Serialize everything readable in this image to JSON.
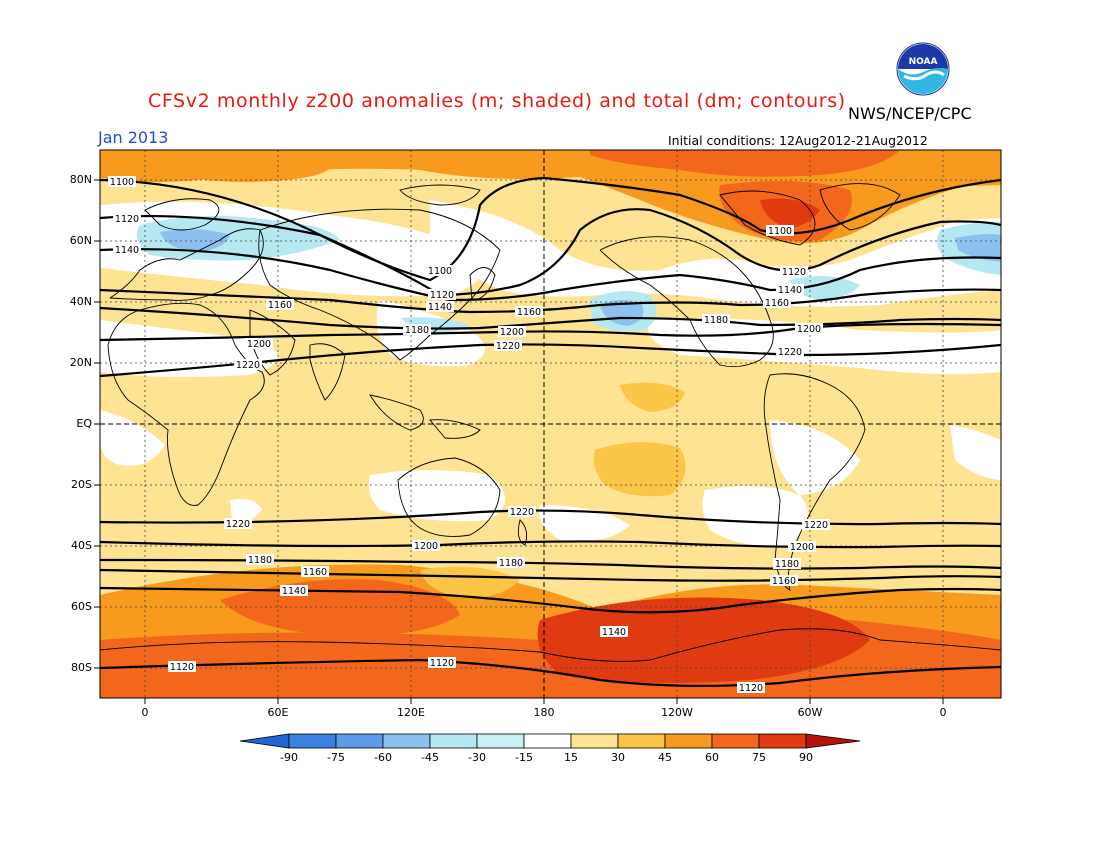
{
  "header": {
    "title": "CFSv2 monthly z200 anomalies (m; shaded) and total (dm; contours)",
    "agency": "NWS/NCEP/CPC",
    "date": "Jan 2013",
    "initial_conditions": "Initial conditions: 12Aug2012-21Aug2012",
    "logo_text": "NOAA"
  },
  "axes": {
    "lat_labels": [
      "80N",
      "60N",
      "40N",
      "20N",
      "EQ",
      "20S",
      "40S",
      "60S",
      "80S"
    ],
    "lon_labels": [
      "0",
      "60E",
      "120E",
      "180",
      "120W",
      "60W",
      "0"
    ]
  },
  "contours": [
    {
      "value": "1100",
      "label": "1100"
    },
    {
      "value": "1120",
      "label": "1120"
    },
    {
      "value": "1140",
      "label": "1140"
    },
    {
      "value": "1160",
      "label": "1160"
    },
    {
      "value": "1180",
      "label": "1180"
    },
    {
      "value": "1200",
      "label": "1200"
    },
    {
      "value": "1220",
      "label": "1220"
    }
  ],
  "colorbar": {
    "labels": [
      "-90",
      "-75",
      "-60",
      "-45",
      "-30",
      "-15",
      "15",
      "30",
      "45",
      "60",
      "75",
      "90"
    ],
    "colors": [
      "#2463d6",
      "#3c80e2",
      "#5d9ae8",
      "#8cc0ee",
      "#b6e8f2",
      "#ffffff",
      "#fde392",
      "#fbc547",
      "#f79a1e",
      "#f2671b",
      "#e03a10",
      "#b5120c"
    ]
  },
  "colors": {
    "title": "#e8190f",
    "date": "#1f4fd8",
    "warm_light": "#fde392",
    "warm_mid": "#fbc547",
    "warm_orange": "#f79a1e",
    "warm_red": "#f2671b",
    "hot": "#e03a10",
    "cool_light": "#b6e8f2",
    "cool_mid": "#8cc0ee"
  }
}
